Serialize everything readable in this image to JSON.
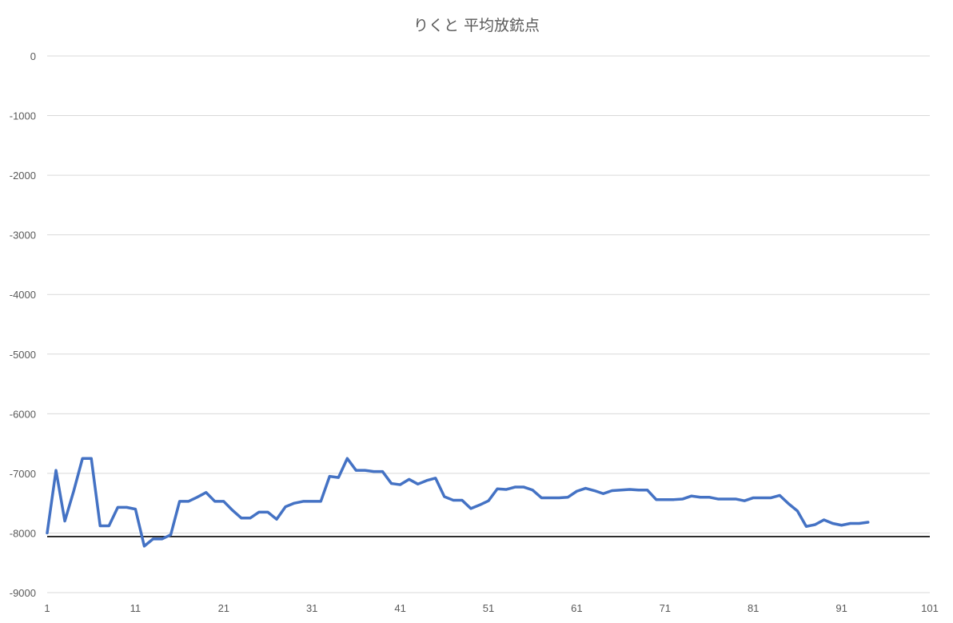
{
  "chart_data": {
    "type": "line",
    "title": "りくと 平均放銃点",
    "xlabel": "",
    "ylabel": "",
    "xlim": [
      1,
      101
    ],
    "ylim": [
      -9000,
      0
    ],
    "x_ticks": [
      1,
      11,
      21,
      31,
      41,
      51,
      61,
      71,
      81,
      91,
      101
    ],
    "y_ticks": [
      0,
      -1000,
      -2000,
      -3000,
      -4000,
      -5000,
      -6000,
      -7000,
      -8000,
      -9000
    ],
    "grid": true,
    "legend": "none",
    "series": [
      {
        "color": "#4472c4",
        "x": [
          1,
          2,
          3,
          4,
          5,
          6,
          7,
          8,
          9,
          10,
          11,
          12,
          13,
          14,
          15,
          16,
          17,
          18,
          19,
          20,
          21,
          22,
          23,
          24,
          25,
          26,
          27,
          28,
          29,
          30,
          31,
          32,
          33,
          34,
          35,
          36,
          37,
          38,
          39,
          40,
          41,
          42,
          43,
          44,
          45,
          46,
          47,
          48,
          49,
          50,
          51,
          52,
          53,
          54,
          55,
          56,
          57,
          58,
          59,
          60,
          61,
          62,
          63,
          64,
          65,
          66,
          67,
          68,
          69,
          70,
          71,
          72,
          73,
          74,
          75,
          76,
          77,
          78,
          79,
          80,
          81,
          82,
          83,
          84,
          85,
          86,
          87,
          88,
          89,
          90,
          91,
          92,
          93,
          94
        ],
        "y": [
          -8000,
          -6950,
          -7800,
          -7300,
          -6750,
          -6750,
          -7880,
          -7880,
          -7570,
          -7570,
          -7600,
          -8220,
          -8100,
          -8100,
          -8030,
          -7470,
          -7470,
          -7400,
          -7320,
          -7470,
          -7470,
          -7620,
          -7750,
          -7750,
          -7650,
          -7650,
          -7770,
          -7560,
          -7500,
          -7470,
          -7470,
          -7470,
          -7050,
          -7070,
          -6750,
          -6950,
          -6950,
          -6970,
          -6970,
          -7170,
          -7190,
          -7100,
          -7180,
          -7120,
          -7080,
          -7390,
          -7450,
          -7450,
          -7590,
          -7530,
          -7460,
          -7260,
          -7270,
          -7230,
          -7230,
          -7280,
          -7410,
          -7410,
          -7410,
          -7400,
          -7300,
          -7250,
          -7290,
          -7340,
          -7290,
          -7280,
          -7270,
          -7280,
          -7280,
          -7440,
          -7440,
          -7440,
          -7430,
          -7380,
          -7400,
          -7400,
          -7430,
          -7430,
          -7430,
          -7460,
          -7410,
          -7410,
          -7410,
          -7370,
          -7510,
          -7630,
          -7890,
          -7860,
          -7780,
          -7840,
          -7870,
          -7840,
          -7840,
          -7820
        ]
      }
    ],
    "reference_line": {
      "y": -8060,
      "color": "#000000"
    }
  }
}
